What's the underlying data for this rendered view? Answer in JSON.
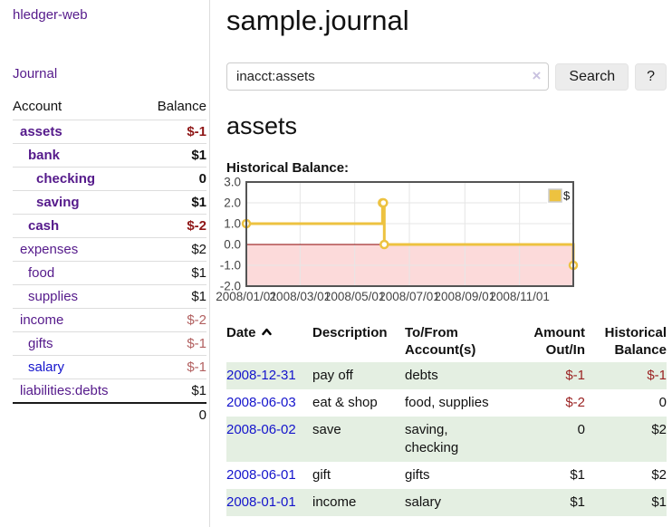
{
  "app": {
    "title": "hledger-web"
  },
  "sidebar": {
    "journal_link": "Journal",
    "accounts_table": {
      "headers": [
        "Account",
        "Balance"
      ],
      "rows": [
        {
          "account": "assets",
          "balance": "$-1",
          "depth": 1,
          "bold": true,
          "negative": true,
          "unvisited": false
        },
        {
          "account": "bank",
          "balance": "$1",
          "depth": 2,
          "bold": true,
          "negative": false,
          "unvisited": false
        },
        {
          "account": "checking",
          "balance": "0",
          "depth": 3,
          "bold": true,
          "negative": false,
          "unvisited": false
        },
        {
          "account": "saving",
          "balance": "$1",
          "depth": 3,
          "bold": true,
          "negative": false,
          "unvisited": false
        },
        {
          "account": "cash",
          "balance": "$-2",
          "depth": 2,
          "bold": true,
          "negative": true,
          "unvisited": false
        },
        {
          "account": "expenses",
          "balance": "$2",
          "depth": 1,
          "bold": false,
          "negative": false,
          "unvisited": false
        },
        {
          "account": "food",
          "balance": "$1",
          "depth": 2,
          "bold": false,
          "negative": false,
          "unvisited": false
        },
        {
          "account": "supplies",
          "balance": "$1",
          "depth": 2,
          "bold": false,
          "negative": false,
          "unvisited": false
        },
        {
          "account": "income",
          "balance": "$-2",
          "depth": 1,
          "bold": false,
          "negative": true,
          "unvisited": false
        },
        {
          "account": "gifts",
          "balance": "$-1",
          "depth": 2,
          "bold": false,
          "negative": true,
          "unvisited": false
        },
        {
          "account": "salary",
          "balance": "$-1",
          "depth": 2,
          "bold": false,
          "negative": true,
          "unvisited": true
        },
        {
          "account": "liabilities:debts",
          "balance": "$1",
          "depth": 1,
          "bold": false,
          "negative": false,
          "unvisited": false
        }
      ],
      "total": "0"
    }
  },
  "header": {
    "title": "sample.journal"
  },
  "search": {
    "value": "inacct:assets",
    "clear_icon": "×",
    "button_label": "Search",
    "help_label": "?"
  },
  "register": {
    "heading": "assets",
    "table": {
      "headers": [
        "Date",
        "Description",
        "To/From Account(s)",
        "Amount Out/In",
        "Historical Balance"
      ],
      "sort_icon": "chevron-up",
      "sort_column": "Date",
      "rows": [
        {
          "date": "2008-12-31",
          "description": "pay off",
          "accounts": "debts",
          "amount": "$-1",
          "amount_negative": true,
          "balance": "$-1",
          "balance_negative": true
        },
        {
          "date": "2008-06-03",
          "description": "eat & shop",
          "accounts": "food, supplies",
          "amount": "$-2",
          "amount_negative": true,
          "balance": "0",
          "balance_negative": false
        },
        {
          "date": "2008-06-02",
          "description": "save",
          "accounts": "saving, checking",
          "amount": "0",
          "amount_negative": false,
          "balance": "$2",
          "balance_negative": false
        },
        {
          "date": "2008-06-01",
          "description": "gift",
          "accounts": "gifts",
          "amount": "$1",
          "amount_negative": false,
          "balance": "$2",
          "balance_negative": false
        },
        {
          "date": "2008-01-01",
          "description": "income",
          "accounts": "salary",
          "amount": "$1",
          "amount_negative": false,
          "balance": "$1",
          "balance_negative": false
        }
      ]
    }
  },
  "chart_data": {
    "type": "line",
    "step": true,
    "title": "Historical Balance:",
    "xlabel": "",
    "ylabel": "",
    "xlim": [
      "2008-01-01",
      "2008-12-31"
    ],
    "ylim": [
      -2,
      3
    ],
    "y_ticks": [
      3.0,
      2.0,
      1.0,
      0.0,
      -1.0,
      -2.0
    ],
    "x_ticks": [
      "2008/01/01",
      "2008/03/01",
      "2008/05/01",
      "2008/07/01",
      "2008/09/01",
      "2008/11/01"
    ],
    "grid": true,
    "legend_position": "top-right",
    "series": [
      {
        "name": "$",
        "color": "#edc240",
        "points": [
          [
            "2008-01-01",
            1
          ],
          [
            "2008-06-01",
            2
          ],
          [
            "2008-06-02",
            2
          ],
          [
            "2008-06-03",
            0
          ],
          [
            "2008-12-31",
            -1
          ]
        ]
      }
    ],
    "colors": {
      "negative_region": "#fcdada",
      "zero_line": "#8b0000",
      "grid_line": "#e6e6e6",
      "plot_border": "#545454",
      "tick_label": "#444444",
      "marker_fill": "#ffffff"
    }
  }
}
